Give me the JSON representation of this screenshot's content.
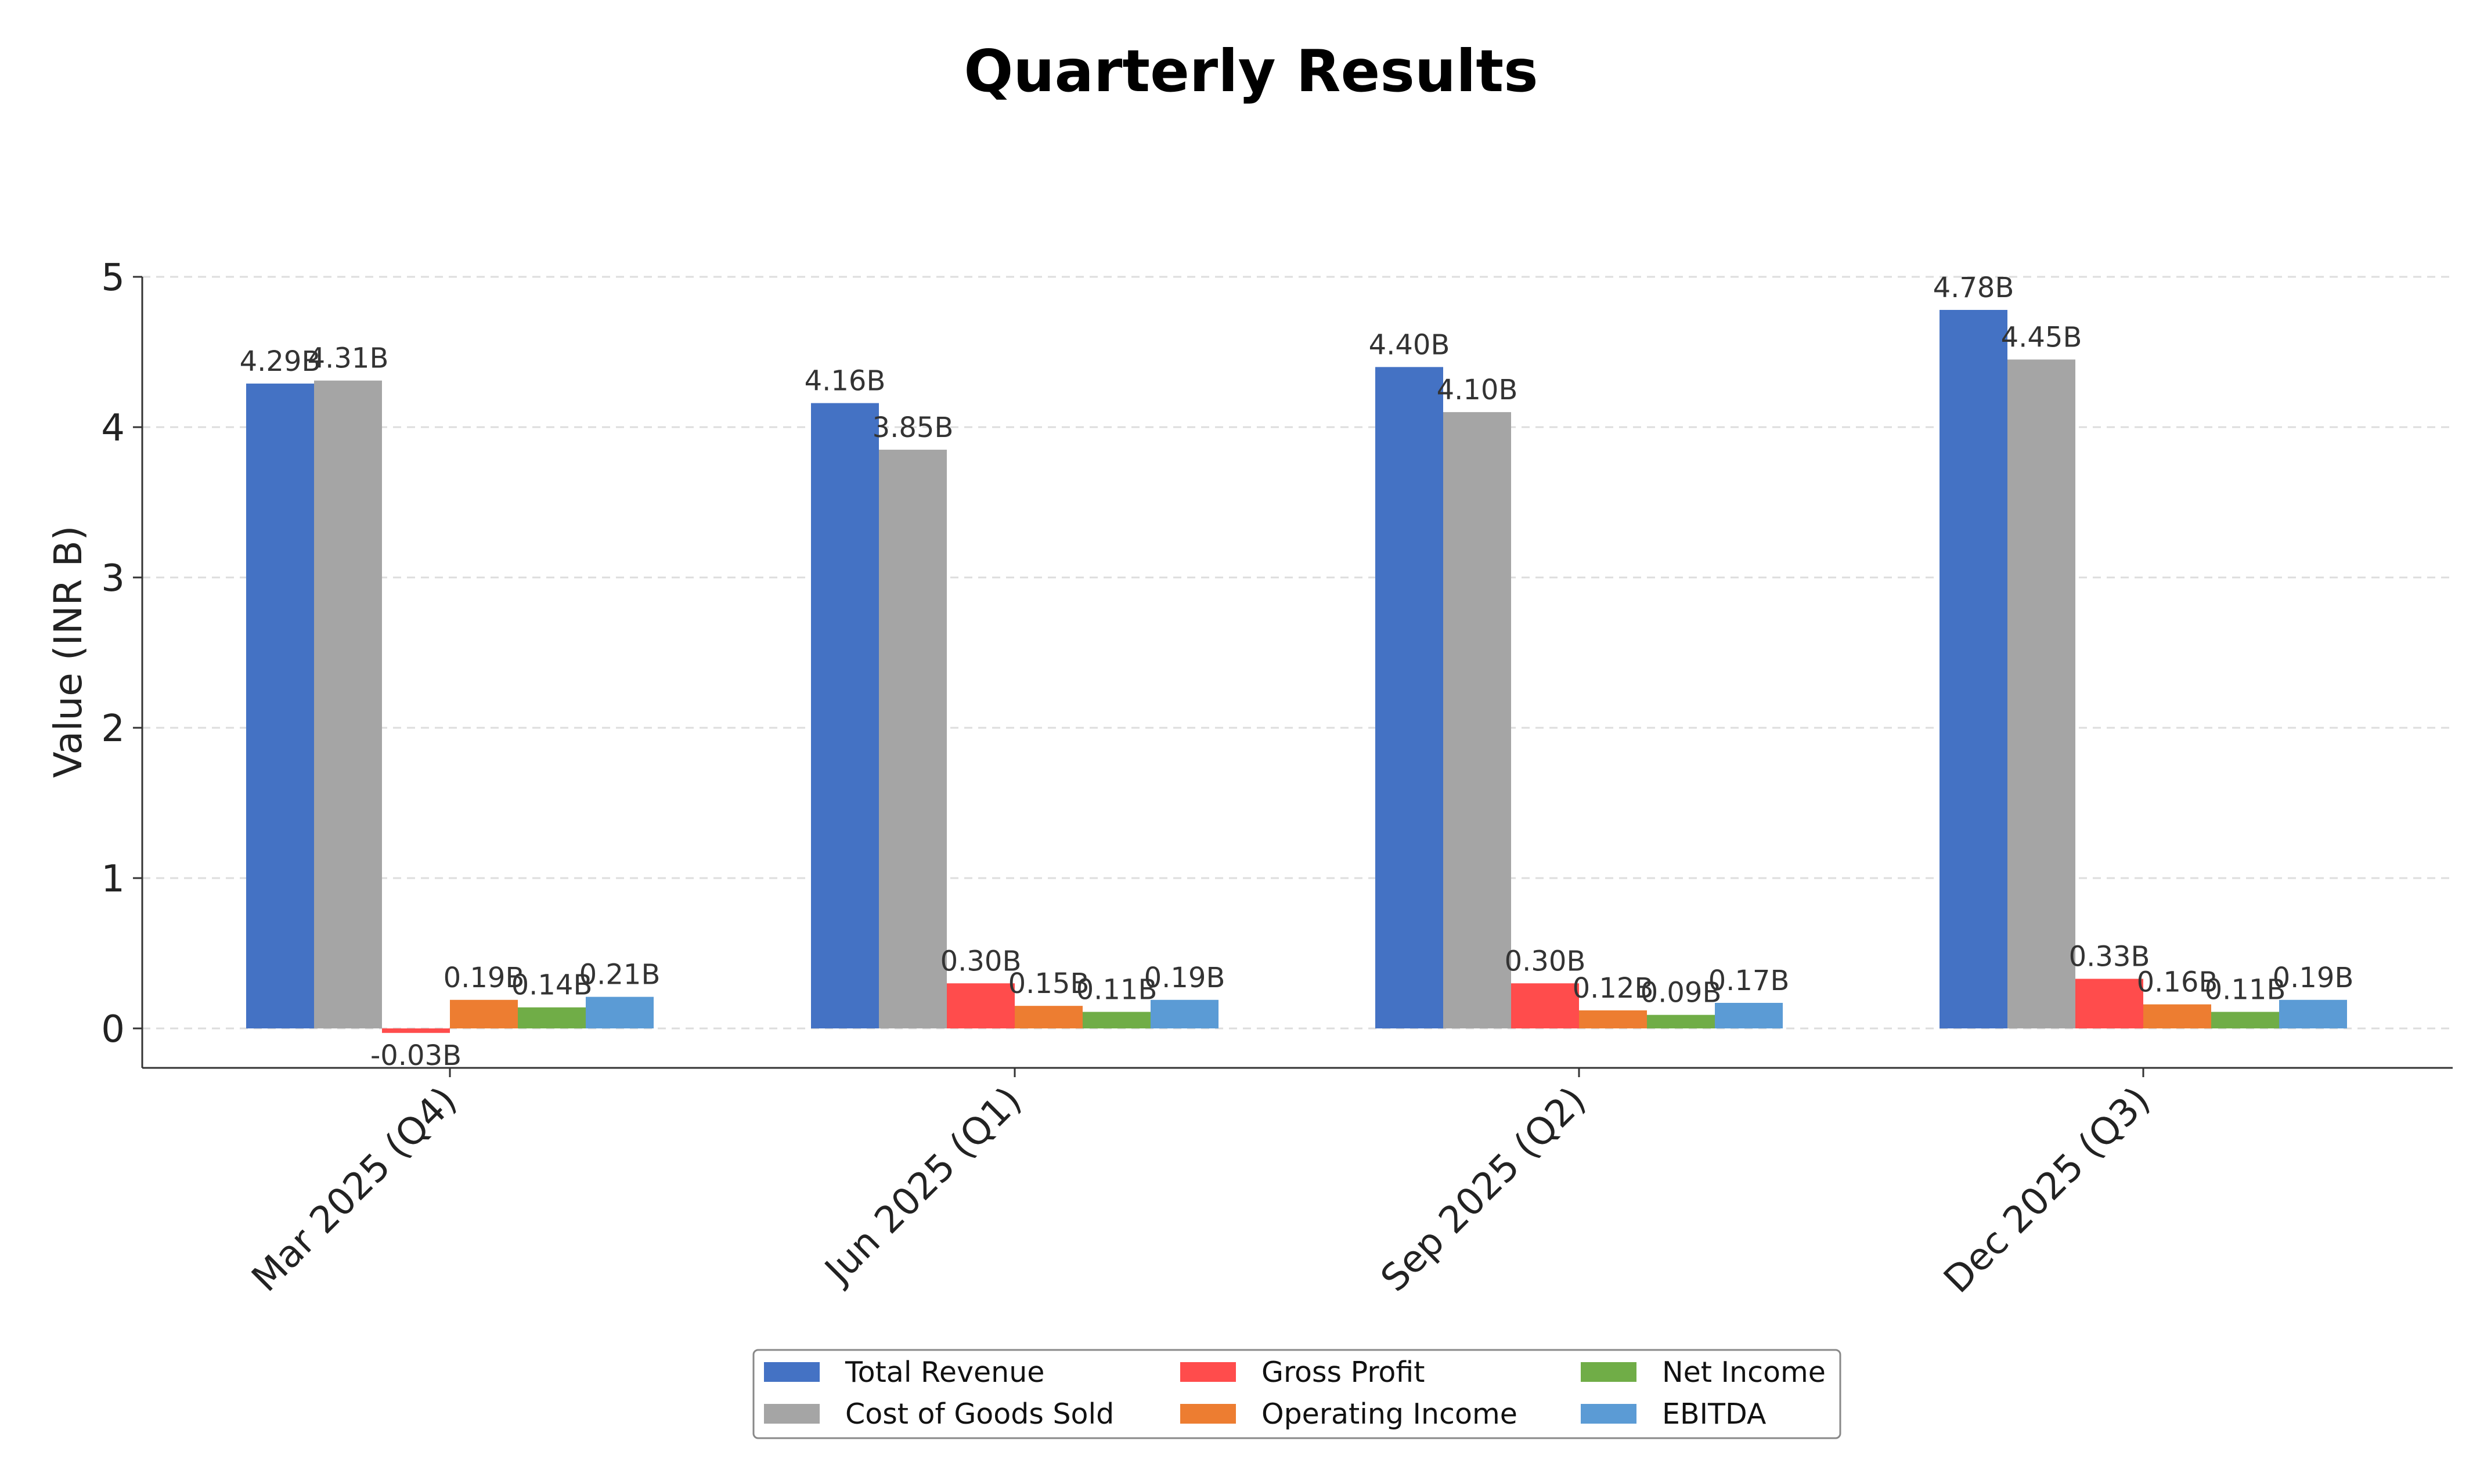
{
  "chart_data": {
    "type": "bar",
    "title": "Quarterly Results",
    "xlabel": "",
    "ylabel": "Value (INR B)",
    "ylim": [
      -0.27,
      5
    ],
    "yticks": [
      0,
      1,
      2,
      3,
      4,
      5
    ],
    "grid": "horizontal-dashed",
    "legend_position": "bottom-center",
    "value_suffix": "B",
    "categories": [
      "Mar 2025 (Q4)",
      "Jun 2025 (Q1)",
      "Sep 2025 (Q2)",
      "Dec 2025 (Q3)"
    ],
    "series": [
      {
        "name": "Total Revenue",
        "color": "#4472c4",
        "values": [
          4.29,
          4.16,
          4.4,
          4.78
        ]
      },
      {
        "name": "Cost of Goods Sold",
        "color": "#a5a5a5",
        "values": [
          4.31,
          3.85,
          4.1,
          4.45
        ]
      },
      {
        "name": "Gross Profit",
        "color": "#ff4c4c",
        "values": [
          -0.03,
          0.3,
          0.3,
          0.33
        ]
      },
      {
        "name": "Operating Income",
        "color": "#ed7d31",
        "values": [
          0.19,
          0.15,
          0.12,
          0.16
        ]
      },
      {
        "name": "Net Income",
        "color": "#70ad47",
        "values": [
          0.14,
          0.11,
          0.09,
          0.11
        ]
      },
      {
        "name": "EBITDA",
        "color": "#5b9bd5",
        "values": [
          0.21,
          0.19,
          0.17,
          0.19
        ]
      }
    ]
  }
}
